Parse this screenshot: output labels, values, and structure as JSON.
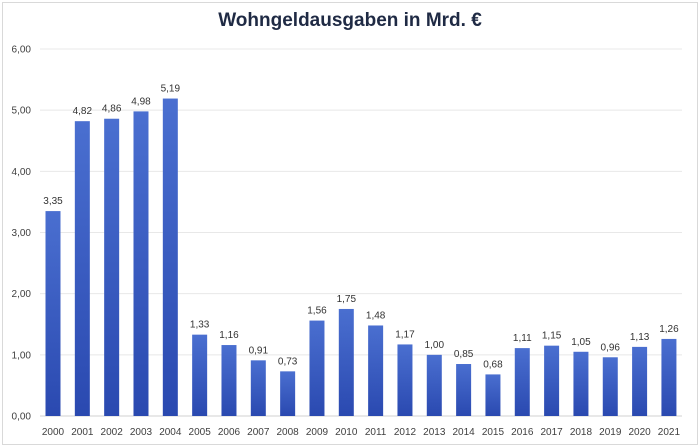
{
  "chart_data": {
    "type": "bar",
    "title": "Wohngeldausgaben in Mrd. €",
    "xlabel": "",
    "ylabel": "",
    "ylim": [
      0,
      6
    ],
    "yticks": [
      "0,00",
      "1,00",
      "2,00",
      "3,00",
      "4,00",
      "5,00",
      "6,00"
    ],
    "grid": true,
    "legend": "none",
    "bar_color": "#3a5bbf",
    "categories": [
      "2000",
      "2001",
      "2002",
      "2003",
      "2004",
      "2005",
      "2006",
      "2007",
      "2008",
      "2009",
      "2010",
      "2011",
      "2012",
      "2013",
      "2014",
      "2015",
      "2016",
      "2017",
      "2018",
      "2019",
      "2020",
      "2021"
    ],
    "values": [
      3.35,
      4.82,
      4.86,
      4.98,
      5.19,
      1.33,
      1.16,
      0.91,
      0.73,
      1.56,
      1.75,
      1.48,
      1.17,
      1.0,
      0.85,
      0.68,
      1.11,
      1.15,
      1.05,
      0.96,
      1.13,
      1.26
    ],
    "data_labels": [
      "3,35",
      "4,82",
      "4,86",
      "4,98",
      "5,19",
      "1,33",
      "1,16",
      "0,91",
      "0,73",
      "1,56",
      "1,75",
      "1,48",
      "1,17",
      "1,00",
      "0,85",
      "0,68",
      "1,11",
      "1,15",
      "1,05",
      "0,96",
      "1,13",
      "1,26"
    ]
  }
}
